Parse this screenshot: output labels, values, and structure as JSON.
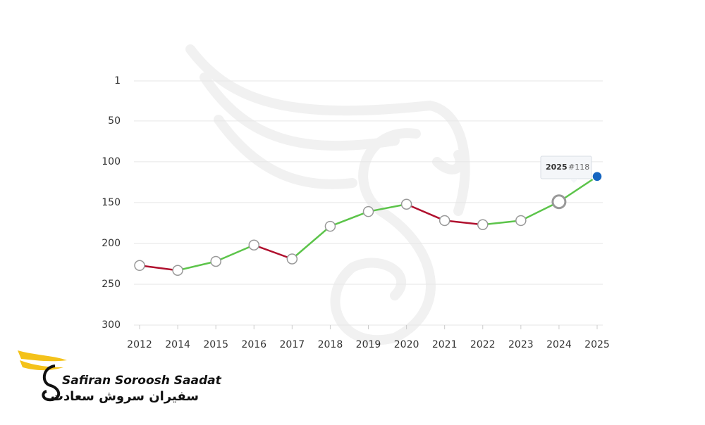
{
  "chart_data": {
    "type": "line",
    "categories": [
      "2012",
      "2014",
      "2015",
      "2016",
      "2017",
      "2018",
      "2019",
      "2020",
      "2021",
      "2022",
      "2023",
      "2024",
      "2025"
    ],
    "values": [
      227,
      233,
      222,
      202,
      219,
      179,
      161,
      152,
      172,
      177,
      172,
      149,
      118
    ],
    "ylim": [
      1,
      300
    ],
    "yticks": [
      1,
      50,
      100,
      150,
      200,
      250,
      300
    ],
    "y_reversed": true,
    "grid": true,
    "up_color": "#5cc44a",
    "down_color": "#b0102e",
    "highlight_color": "#1565c0",
    "tooltip": {
      "title": "2025",
      "text": "#118"
    }
  },
  "logo": {
    "name": "Safiran Soroosh Saadat",
    "name_fa": "سفیران سروش سعادت"
  }
}
